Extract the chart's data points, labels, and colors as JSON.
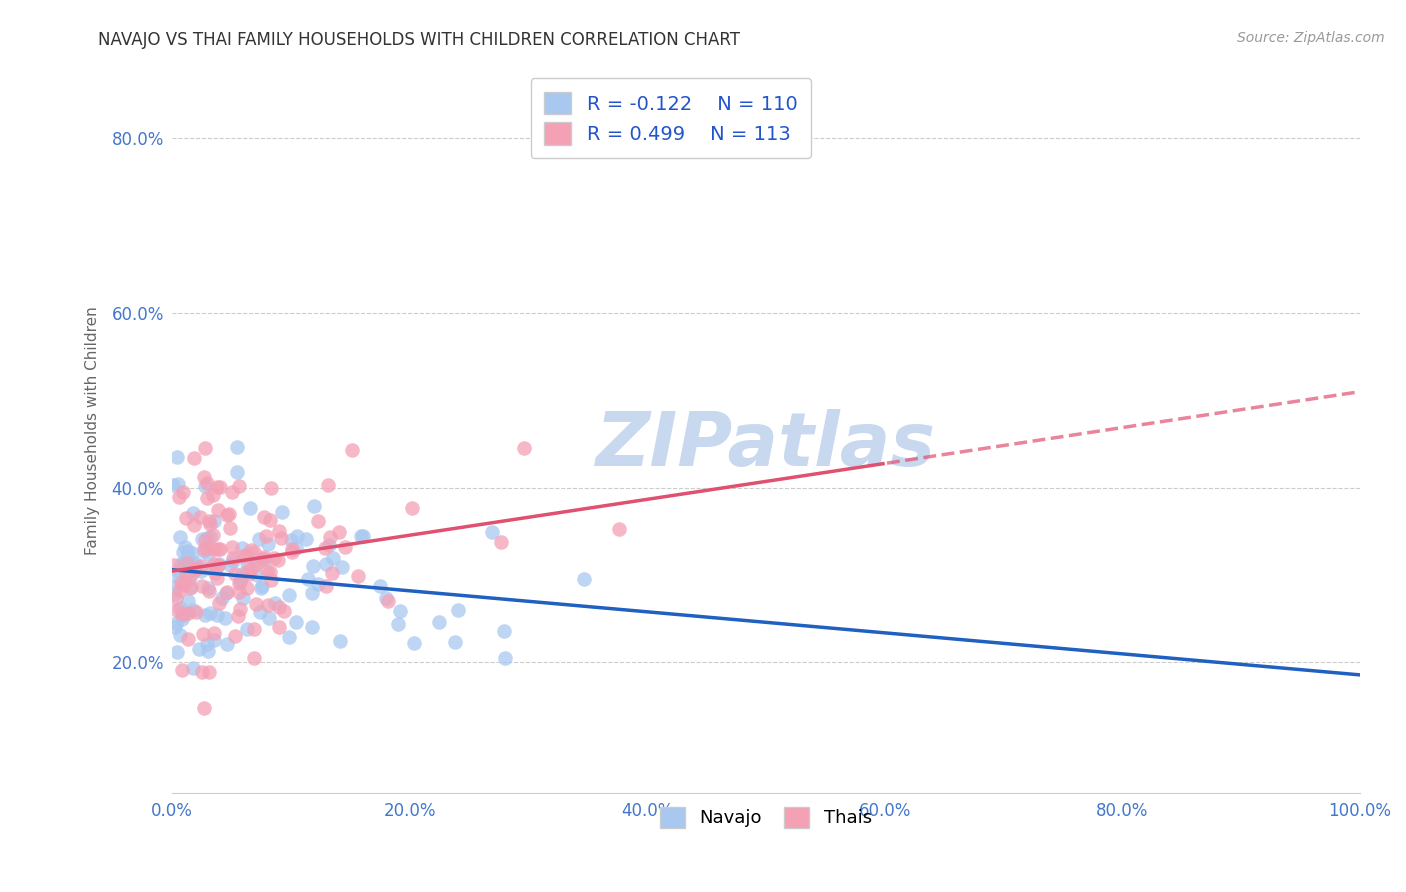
{
  "title": "NAVAJO VS THAI FAMILY HOUSEHOLDS WITH CHILDREN CORRELATION CHART",
  "source": "Source: ZipAtlas.com",
  "ylabel": "Family Households with Children",
  "navajo_label": "Navajo",
  "thai_label": "Thais",
  "navajo_R": -0.122,
  "navajo_N": 110,
  "thai_R": 0.499,
  "thai_N": 113,
  "navajo_color": "#A8C8F0",
  "thai_color": "#F4A0B5",
  "navajo_line_color": "#2060C0",
  "thai_line_color": "#E05070",
  "background_color": "#FFFFFF",
  "grid_color": "#CCCCCC",
  "watermark": "ZIPatlas",
  "watermark_color": "#C8D8EE",
  "xlim": [
    0.0,
    1.0
  ],
  "ylim": [
    0.05,
    0.88
  ],
  "xtick_vals": [
    0.0,
    0.2,
    0.4,
    0.6,
    0.8,
    1.0
  ],
  "xtick_labels": [
    "0.0%",
    "20.0%",
    "40.0%",
    "60.0%",
    "80.0%",
    "100.0%"
  ],
  "ytick_vals": [
    0.2,
    0.4,
    0.6,
    0.8
  ],
  "ytick_labels": [
    "20.0%",
    "40.0%",
    "60.0%",
    "80.0%"
  ],
  "tick_color": "#4477CC",
  "title_color": "#333333",
  "ylabel_color": "#666666",
  "source_color": "#999999",
  "legend_text_color": "#2255CC",
  "legend_border_color": "#CCCCCC"
}
